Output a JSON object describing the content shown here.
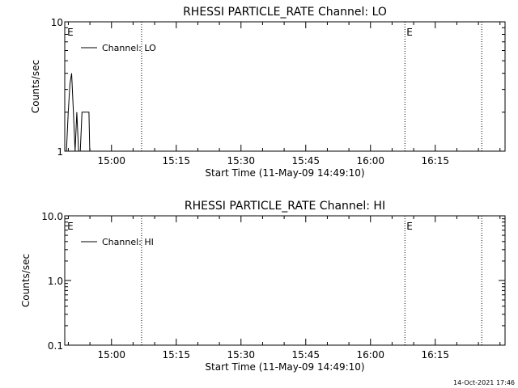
{
  "footer": {
    "timestamp": "14-Oct-2021 17:46"
  },
  "chart_data": [
    {
      "type": "line",
      "title": "RHESSI PARTICLE_RATE Channel: LO",
      "xlabel": "Start Time (11-May-09 14:49:10)",
      "ylabel": "Counts/sec",
      "yscale": "log",
      "ylim": [
        1,
        10
      ],
      "ytick_values": [
        1,
        10
      ],
      "ytick_labels": [
        "1",
        "10"
      ],
      "xlim_minutes": [
        0,
        102
      ],
      "xtick_values": [
        10.83,
        25.83,
        40.83,
        55.83,
        70.83,
        85.83
      ],
      "xtick_labels": [
        "15:00",
        "15:15",
        "15:30",
        "15:45",
        "16:00",
        "16:15"
      ],
      "legend": {
        "position": "top-left",
        "entries": [
          "Channel: LO"
        ]
      },
      "event_markers": [
        {
          "x": 0.2,
          "label": "E",
          "style": "solid"
        },
        {
          "x": 17.8,
          "label": "",
          "style": "dotted"
        },
        {
          "x": 78.8,
          "label": "E",
          "style": "dotted"
        },
        {
          "x": 96.6,
          "label": "",
          "style": "dotted"
        }
      ],
      "series": [
        {
          "name": "Channel: LO",
          "x": [
            0.4,
            0.8,
            1.2,
            1.6,
            2.0,
            2.4,
            2.8,
            3.2,
            3.6,
            4.0,
            4.4,
            4.8,
            5.2,
            5.6,
            5.8
          ],
          "y": [
            1,
            2.0,
            3.3,
            4.0,
            2.0,
            1,
            2.0,
            1,
            1,
            2.0,
            2.0,
            2.0,
            2.0,
            2.0,
            1
          ]
        }
      ]
    },
    {
      "type": "line",
      "title": "RHESSI PARTICLE_RATE Channel: HI",
      "xlabel": "Start Time (11-May-09 14:49:10)",
      "ylabel": "Counts/sec",
      "yscale": "log",
      "ylim": [
        0.1,
        10
      ],
      "ytick_values": [
        0.1,
        1,
        10
      ],
      "ytick_labels": [
        "0.1",
        "1.0",
        "10.0"
      ],
      "xlim_minutes": [
        0,
        102
      ],
      "xtick_values": [
        10.83,
        25.83,
        40.83,
        55.83,
        70.83,
        85.83
      ],
      "xtick_labels": [
        "15:00",
        "15:15",
        "15:30",
        "15:45",
        "16:00",
        "16:15"
      ],
      "legend": {
        "position": "top-left",
        "entries": [
          "Channel: HI"
        ]
      },
      "event_markers": [
        {
          "x": 0.2,
          "label": "E",
          "style": "solid"
        },
        {
          "x": 17.8,
          "label": "",
          "style": "dotted"
        },
        {
          "x": 78.8,
          "label": "E",
          "style": "dotted"
        },
        {
          "x": 96.6,
          "label": "",
          "style": "dotted"
        }
      ],
      "series": [
        {
          "name": "Channel: HI",
          "x": [],
          "y": []
        }
      ]
    }
  ]
}
